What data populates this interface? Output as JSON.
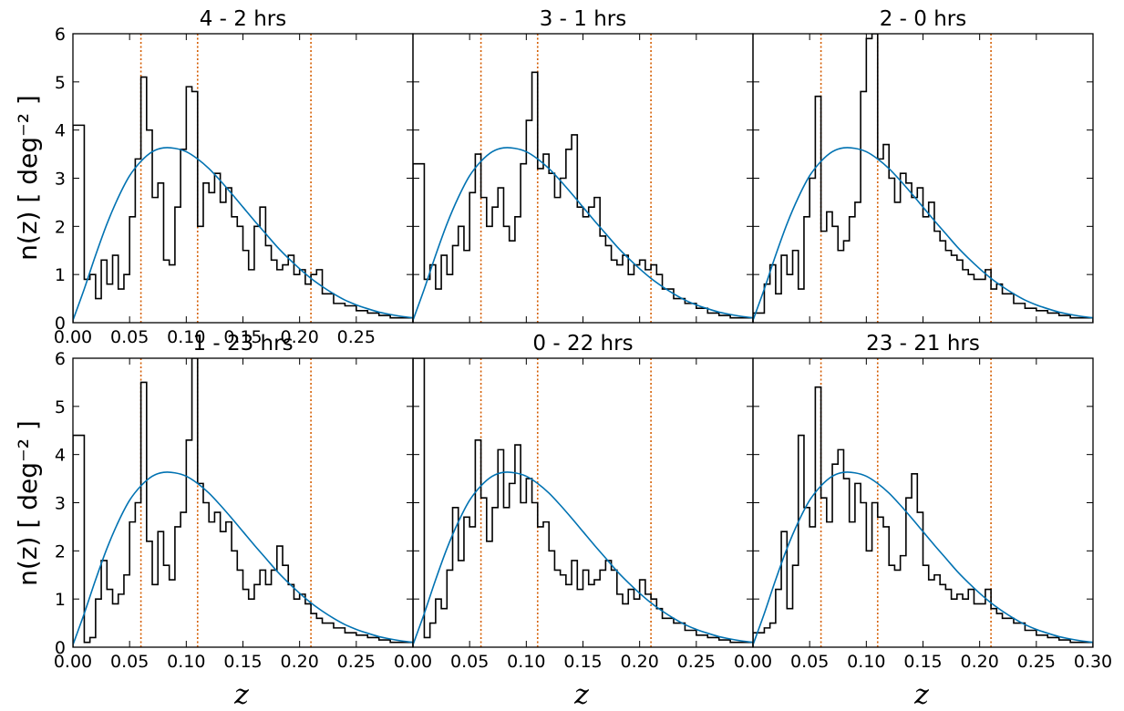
{
  "figure": {
    "ylabel": "n(z) [ deg⁻² ]",
    "xlabel": "z"
  },
  "colors": {
    "histogram": "#000000",
    "model_curve": "#0072b2",
    "marker_lines": "#d55e00"
  },
  "chart_data": [
    {
      "type": "line",
      "title": "4 -  2 hrs",
      "xlim": [
        0,
        0.3
      ],
      "ylim": [
        0,
        6
      ],
      "x_ticks": [
        "0.00",
        "0.05",
        "0.10",
        "0.15",
        "0.20",
        "0.25"
      ],
      "y_ticks": [
        "0",
        "1",
        "2",
        "3",
        "4",
        "5",
        "6"
      ],
      "marker_lines_x": [
        0.06,
        0.11,
        0.21
      ],
      "model_curve": {
        "x": [
          0,
          0.01,
          0.02,
          0.03,
          0.04,
          0.05,
          0.06,
          0.07,
          0.08,
          0.09,
          0.1,
          0.11,
          0.12,
          0.13,
          0.14,
          0.15,
          0.16,
          0.17,
          0.18,
          0.19,
          0.2,
          0.21,
          0.22,
          0.23,
          0.24,
          0.25,
          0.26,
          0.27,
          0.28,
          0.29,
          0.3
        ],
        "y": [
          0.05,
          0.7,
          1.4,
          2.05,
          2.6,
          3.05,
          3.35,
          3.55,
          3.63,
          3.62,
          3.55,
          3.4,
          3.2,
          2.95,
          2.68,
          2.4,
          2.12,
          1.85,
          1.58,
          1.34,
          1.12,
          0.92,
          0.75,
          0.6,
          0.47,
          0.37,
          0.29,
          0.22,
          0.17,
          0.13,
          0.1
        ]
      },
      "histogram": {
        "edges": [
          0,
          0.01,
          0.015,
          0.02,
          0.025,
          0.03,
          0.035,
          0.04,
          0.045,
          0.05,
          0.055,
          0.06,
          0.065,
          0.07,
          0.075,
          0.08,
          0.085,
          0.09,
          0.095,
          0.1,
          0.105,
          0.11,
          0.115,
          0.12,
          0.125,
          0.13,
          0.135,
          0.14,
          0.145,
          0.15,
          0.155,
          0.16,
          0.165,
          0.17,
          0.175,
          0.18,
          0.185,
          0.19,
          0.195,
          0.2,
          0.205,
          0.21,
          0.215,
          0.22,
          0.23,
          0.24,
          0.25,
          0.26,
          0.27,
          0.28,
          0.3
        ],
        "counts": [
          4.1,
          0.9,
          1.0,
          0.5,
          1.3,
          0.8,
          1.4,
          0.7,
          1.0,
          2.2,
          3.4,
          5.1,
          4.0,
          2.6,
          2.9,
          1.3,
          1.2,
          2.4,
          3.6,
          4.9,
          4.8,
          2.0,
          2.9,
          2.7,
          3.1,
          2.5,
          2.8,
          2.2,
          2.0,
          1.5,
          1.1,
          2.0,
          2.4,
          1.6,
          1.3,
          1.1,
          1.2,
          1.4,
          1.0,
          1.1,
          0.8,
          1.0,
          1.1,
          0.6,
          0.4,
          0.35,
          0.25,
          0.2,
          0.15,
          0.1
        ]
      }
    },
    {
      "type": "line",
      "title": "3 -  1 hrs",
      "xlim": [
        0,
        0.3
      ],
      "ylim": [
        0,
        6
      ],
      "x_ticks": [],
      "y_ticks": [],
      "marker_lines_x": [
        0.06,
        0.11,
        0.21
      ],
      "model_curve": {
        "x": [
          0,
          0.01,
          0.02,
          0.03,
          0.04,
          0.05,
          0.06,
          0.07,
          0.08,
          0.09,
          0.1,
          0.11,
          0.12,
          0.13,
          0.14,
          0.15,
          0.16,
          0.17,
          0.18,
          0.19,
          0.2,
          0.21,
          0.22,
          0.23,
          0.24,
          0.25,
          0.26,
          0.27,
          0.28,
          0.29,
          0.3
        ],
        "y": [
          0.05,
          0.7,
          1.4,
          2.05,
          2.6,
          3.05,
          3.35,
          3.55,
          3.63,
          3.62,
          3.55,
          3.4,
          3.2,
          2.95,
          2.68,
          2.4,
          2.12,
          1.85,
          1.58,
          1.34,
          1.12,
          0.92,
          0.75,
          0.6,
          0.47,
          0.37,
          0.29,
          0.22,
          0.17,
          0.13,
          0.1
        ]
      },
      "histogram": {
        "edges": [
          0,
          0.01,
          0.015,
          0.02,
          0.025,
          0.03,
          0.035,
          0.04,
          0.045,
          0.05,
          0.055,
          0.06,
          0.065,
          0.07,
          0.075,
          0.08,
          0.085,
          0.09,
          0.095,
          0.1,
          0.105,
          0.11,
          0.115,
          0.12,
          0.125,
          0.13,
          0.135,
          0.14,
          0.145,
          0.15,
          0.155,
          0.16,
          0.165,
          0.17,
          0.175,
          0.18,
          0.185,
          0.19,
          0.195,
          0.2,
          0.205,
          0.21,
          0.215,
          0.22,
          0.23,
          0.24,
          0.25,
          0.26,
          0.27,
          0.28,
          0.3
        ],
        "counts": [
          3.3,
          0.9,
          1.2,
          0.7,
          1.4,
          1.0,
          1.6,
          2.0,
          1.5,
          2.7,
          3.5,
          2.6,
          2.0,
          2.4,
          2.8,
          2.0,
          1.7,
          2.2,
          3.3,
          4.2,
          5.2,
          3.2,
          3.5,
          3.1,
          2.6,
          3.0,
          3.6,
          3.9,
          2.4,
          2.2,
          2.4,
          2.6,
          1.8,
          1.6,
          1.3,
          1.2,
          1.4,
          1.0,
          1.2,
          1.3,
          1.1,
          1.2,
          1.0,
          0.7,
          0.5,
          0.4,
          0.3,
          0.2,
          0.15,
          0.1
        ]
      }
    },
    {
      "type": "line",
      "title": "2 -  0 hrs",
      "xlim": [
        0,
        0.3
      ],
      "ylim": [
        0,
        6
      ],
      "x_ticks": [],
      "y_ticks": [],
      "marker_lines_x": [
        0.06,
        0.11,
        0.21
      ],
      "model_curve": {
        "x": [
          0,
          0.01,
          0.02,
          0.03,
          0.04,
          0.05,
          0.06,
          0.07,
          0.08,
          0.09,
          0.1,
          0.11,
          0.12,
          0.13,
          0.14,
          0.15,
          0.16,
          0.17,
          0.18,
          0.19,
          0.2,
          0.21,
          0.22,
          0.23,
          0.24,
          0.25,
          0.26,
          0.27,
          0.28,
          0.29,
          0.3
        ],
        "y": [
          0.05,
          0.7,
          1.4,
          2.05,
          2.6,
          3.05,
          3.35,
          3.55,
          3.63,
          3.62,
          3.55,
          3.4,
          3.2,
          2.95,
          2.68,
          2.4,
          2.12,
          1.85,
          1.58,
          1.34,
          1.12,
          0.92,
          0.75,
          0.6,
          0.47,
          0.37,
          0.29,
          0.22,
          0.17,
          0.13,
          0.1
        ]
      },
      "histogram": {
        "edges": [
          0,
          0.01,
          0.015,
          0.02,
          0.025,
          0.03,
          0.035,
          0.04,
          0.045,
          0.05,
          0.055,
          0.06,
          0.065,
          0.07,
          0.075,
          0.08,
          0.085,
          0.09,
          0.095,
          0.1,
          0.105,
          0.11,
          0.115,
          0.12,
          0.125,
          0.13,
          0.135,
          0.14,
          0.145,
          0.15,
          0.155,
          0.16,
          0.165,
          0.17,
          0.175,
          0.18,
          0.185,
          0.19,
          0.195,
          0.2,
          0.205,
          0.21,
          0.215,
          0.22,
          0.23,
          0.24,
          0.25,
          0.26,
          0.27,
          0.28,
          0.3
        ],
        "counts": [
          0.2,
          0.8,
          1.2,
          0.6,
          1.4,
          1.0,
          1.5,
          0.7,
          2.2,
          3.0,
          4.7,
          1.9,
          2.3,
          2.0,
          1.5,
          1.7,
          2.2,
          2.5,
          4.8,
          5.9,
          6.0,
          3.4,
          3.7,
          3.0,
          2.5,
          3.1,
          2.9,
          2.6,
          2.8,
          2.2,
          2.5,
          1.9,
          1.7,
          1.5,
          1.4,
          1.3,
          1.1,
          1.0,
          0.9,
          0.9,
          1.1,
          0.7,
          0.8,
          0.6,
          0.4,
          0.3,
          0.25,
          0.2,
          0.15,
          0.1
        ]
      }
    },
    {
      "type": "line",
      "title": "1 - 23 hrs",
      "xlim": [
        0,
        0.3
      ],
      "ylim": [
        0,
        6
      ],
      "x_ticks": [
        "0.00",
        "0.05",
        "0.10",
        "0.15",
        "0.20",
        "0.25"
      ],
      "y_ticks": [
        "0",
        "1",
        "2",
        "3",
        "4",
        "5",
        "6"
      ],
      "marker_lines_x": [
        0.06,
        0.11,
        0.21
      ],
      "model_curve": {
        "x": [
          0,
          0.01,
          0.02,
          0.03,
          0.04,
          0.05,
          0.06,
          0.07,
          0.08,
          0.09,
          0.1,
          0.11,
          0.12,
          0.13,
          0.14,
          0.15,
          0.16,
          0.17,
          0.18,
          0.19,
          0.2,
          0.21,
          0.22,
          0.23,
          0.24,
          0.25,
          0.26,
          0.27,
          0.28,
          0.29,
          0.3
        ],
        "y": [
          0.05,
          0.7,
          1.4,
          2.05,
          2.6,
          3.05,
          3.35,
          3.55,
          3.63,
          3.62,
          3.55,
          3.4,
          3.2,
          2.95,
          2.68,
          2.4,
          2.12,
          1.85,
          1.58,
          1.34,
          1.12,
          0.92,
          0.75,
          0.6,
          0.47,
          0.37,
          0.29,
          0.22,
          0.17,
          0.13,
          0.1
        ]
      },
      "histogram": {
        "edges": [
          0,
          0.01,
          0.015,
          0.02,
          0.025,
          0.03,
          0.035,
          0.04,
          0.045,
          0.05,
          0.055,
          0.06,
          0.065,
          0.07,
          0.075,
          0.08,
          0.085,
          0.09,
          0.095,
          0.1,
          0.105,
          0.11,
          0.115,
          0.12,
          0.125,
          0.13,
          0.135,
          0.14,
          0.145,
          0.15,
          0.155,
          0.16,
          0.165,
          0.17,
          0.175,
          0.18,
          0.185,
          0.19,
          0.195,
          0.2,
          0.205,
          0.21,
          0.215,
          0.22,
          0.23,
          0.24,
          0.25,
          0.26,
          0.27,
          0.28,
          0.3
        ],
        "counts": [
          4.4,
          0.1,
          0.2,
          1.0,
          1.8,
          1.2,
          0.9,
          1.1,
          1.5,
          2.6,
          3.0,
          5.5,
          2.2,
          1.3,
          2.4,
          1.7,
          1.4,
          2.5,
          2.8,
          4.3,
          6.0,
          3.4,
          3.0,
          2.6,
          2.8,
          2.4,
          2.6,
          2.0,
          1.6,
          1.2,
          1.0,
          1.3,
          1.6,
          1.3,
          1.6,
          2.1,
          1.7,
          1.3,
          1.0,
          1.1,
          0.9,
          0.7,
          0.6,
          0.5,
          0.4,
          0.3,
          0.25,
          0.2,
          0.15,
          0.1
        ]
      }
    },
    {
      "type": "line",
      "title": "0 - 22 hrs",
      "xlim": [
        0,
        0.3
      ],
      "ylim": [
        0,
        6
      ],
      "x_ticks": [
        "0.00",
        "0.05",
        "0.10",
        "0.15",
        "0.20",
        "0.25"
      ],
      "y_ticks": [],
      "marker_lines_x": [
        0.06,
        0.11,
        0.21
      ],
      "model_curve": {
        "x": [
          0,
          0.01,
          0.02,
          0.03,
          0.04,
          0.05,
          0.06,
          0.07,
          0.08,
          0.09,
          0.1,
          0.11,
          0.12,
          0.13,
          0.14,
          0.15,
          0.16,
          0.17,
          0.18,
          0.19,
          0.2,
          0.21,
          0.22,
          0.23,
          0.24,
          0.25,
          0.26,
          0.27,
          0.28,
          0.29,
          0.3
        ],
        "y": [
          0.05,
          0.7,
          1.4,
          2.05,
          2.6,
          3.05,
          3.35,
          3.55,
          3.63,
          3.62,
          3.55,
          3.4,
          3.2,
          2.95,
          2.68,
          2.4,
          2.12,
          1.85,
          1.58,
          1.34,
          1.12,
          0.92,
          0.75,
          0.6,
          0.47,
          0.37,
          0.29,
          0.22,
          0.17,
          0.13,
          0.1
        ]
      },
      "histogram": {
        "edges": [
          0,
          0.01,
          0.015,
          0.02,
          0.025,
          0.03,
          0.035,
          0.04,
          0.045,
          0.05,
          0.055,
          0.06,
          0.065,
          0.07,
          0.075,
          0.08,
          0.085,
          0.09,
          0.095,
          0.1,
          0.105,
          0.11,
          0.115,
          0.12,
          0.125,
          0.13,
          0.135,
          0.14,
          0.145,
          0.15,
          0.155,
          0.16,
          0.165,
          0.17,
          0.175,
          0.18,
          0.185,
          0.19,
          0.195,
          0.2,
          0.205,
          0.21,
          0.215,
          0.22,
          0.23,
          0.24,
          0.25,
          0.26,
          0.27,
          0.28,
          0.3
        ],
        "counts": [
          6.0,
          0.2,
          0.5,
          1.0,
          0.8,
          1.6,
          2.9,
          1.8,
          2.7,
          2.5,
          4.3,
          3.1,
          2.2,
          2.9,
          4.1,
          2.9,
          3.4,
          4.2,
          3.0,
          3.5,
          3.0,
          2.5,
          2.6,
          2.0,
          1.6,
          1.5,
          1.3,
          1.8,
          1.2,
          1.6,
          1.3,
          1.4,
          1.6,
          1.8,
          1.6,
          1.1,
          0.9,
          1.2,
          1.0,
          1.4,
          1.1,
          1.0,
          0.8,
          0.6,
          0.5,
          0.35,
          0.25,
          0.2,
          0.15,
          0.1
        ]
      }
    },
    {
      "type": "line",
      "title": "23 - 21 hrs",
      "xlim": [
        0,
        0.3
      ],
      "ylim": [
        0,
        6
      ],
      "x_ticks": [
        "0.00",
        "0.05",
        "0.10",
        "0.15",
        "0.20",
        "0.25",
        "0.30"
      ],
      "y_ticks": [],
      "marker_lines_x": [
        0.06,
        0.11,
        0.21
      ],
      "model_curve": {
        "x": [
          0,
          0.01,
          0.02,
          0.03,
          0.04,
          0.05,
          0.06,
          0.07,
          0.08,
          0.09,
          0.1,
          0.11,
          0.12,
          0.13,
          0.14,
          0.15,
          0.16,
          0.17,
          0.18,
          0.19,
          0.2,
          0.21,
          0.22,
          0.23,
          0.24,
          0.25,
          0.26,
          0.27,
          0.28,
          0.29,
          0.3
        ],
        "y": [
          0.05,
          0.7,
          1.4,
          2.05,
          2.6,
          3.05,
          3.35,
          3.55,
          3.63,
          3.62,
          3.55,
          3.4,
          3.2,
          2.95,
          2.68,
          2.4,
          2.12,
          1.85,
          1.58,
          1.34,
          1.12,
          0.92,
          0.75,
          0.6,
          0.47,
          0.37,
          0.29,
          0.22,
          0.17,
          0.13,
          0.1
        ]
      },
      "histogram": {
        "edges": [
          0,
          0.01,
          0.015,
          0.02,
          0.025,
          0.03,
          0.035,
          0.04,
          0.045,
          0.05,
          0.055,
          0.06,
          0.065,
          0.07,
          0.075,
          0.08,
          0.085,
          0.09,
          0.095,
          0.1,
          0.105,
          0.11,
          0.115,
          0.12,
          0.125,
          0.13,
          0.135,
          0.14,
          0.145,
          0.15,
          0.155,
          0.16,
          0.165,
          0.17,
          0.175,
          0.18,
          0.185,
          0.19,
          0.195,
          0.2,
          0.205,
          0.21,
          0.215,
          0.22,
          0.23,
          0.24,
          0.25,
          0.26,
          0.27,
          0.28,
          0.3
        ],
        "counts": [
          0.3,
          0.4,
          0.5,
          1.2,
          2.4,
          0.8,
          1.7,
          4.4,
          2.9,
          2.5,
          5.4,
          3.1,
          2.6,
          3.8,
          4.1,
          3.5,
          2.6,
          3.4,
          3.0,
          2.0,
          3.0,
          2.7,
          2.5,
          1.7,
          1.6,
          1.9,
          3.1,
          3.6,
          2.8,
          1.7,
          1.4,
          1.5,
          1.3,
          1.2,
          1.0,
          1.1,
          1.0,
          1.2,
          0.9,
          0.9,
          1.2,
          0.8,
          0.7,
          0.6,
          0.5,
          0.35,
          0.25,
          0.2,
          0.15,
          0.1
        ]
      }
    }
  ]
}
